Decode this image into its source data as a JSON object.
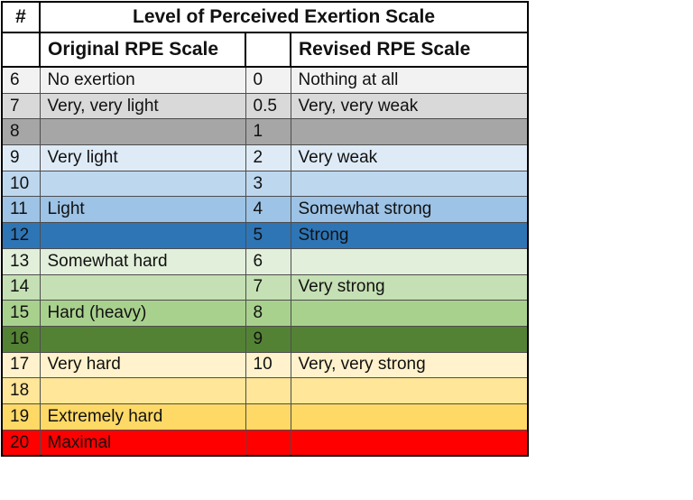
{
  "table": {
    "header": {
      "hash_label": "#",
      "title": "Level of Perceived Exertion Scale",
      "original_label": "Original RPE Scale",
      "revised_label": "Revised RPE Scale"
    },
    "rows": [
      {
        "num": "6",
        "original": "No exertion",
        "rnum": "0",
        "revised": "Nothing at all",
        "bg": "#F2F2F2"
      },
      {
        "num": "7",
        "original": "Very, very light",
        "rnum": "0.5",
        "revised": "Very, very weak",
        "bg": "#D9D9D9"
      },
      {
        "num": "8",
        "original": "",
        "rnum": "1",
        "revised": "",
        "bg": "#A6A6A6"
      },
      {
        "num": "9",
        "original": "Very light",
        "rnum": "2",
        "revised": "Very weak",
        "bg": "#DEEBF7"
      },
      {
        "num": "10",
        "original": "",
        "rnum": "3",
        "revised": "",
        "bg": "#BDD7EE"
      },
      {
        "num": "11",
        "original": "Light",
        "rnum": "4",
        "revised": "Somewhat strong",
        "bg": "#9DC3E6"
      },
      {
        "num": "12",
        "original": "",
        "rnum": "5",
        "revised": "Strong",
        "bg": "#2E75B6"
      },
      {
        "num": "13",
        "original": "Somewhat hard",
        "rnum": "6",
        "revised": "",
        "bg": "#E2EFDA"
      },
      {
        "num": "14",
        "original": "",
        "rnum": "7",
        "revised": "Very strong",
        "bg": "#C5E0B4"
      },
      {
        "num": "15",
        "original": "Hard (heavy)",
        "rnum": "8",
        "revised": "",
        "bg": "#A9D18E"
      },
      {
        "num": "16",
        "original": "",
        "rnum": "9",
        "revised": "",
        "bg": "#548235"
      },
      {
        "num": "17",
        "original": "Very hard",
        "rnum": "10",
        "revised": "Very, very strong",
        "bg": "#FFF2CC"
      },
      {
        "num": "18",
        "original": "",
        "rnum": "",
        "revised": "",
        "bg": "#FFE699"
      },
      {
        "num": "19",
        "original": "Extremely hard",
        "rnum": "",
        "revised": "",
        "bg": "#FFD966"
      },
      {
        "num": "20",
        "original": "Maximal",
        "rnum": "",
        "revised": "",
        "bg": "#FF0000"
      }
    ],
    "colors": {
      "border_inner": "#4d4d4d",
      "border_outer": "#000000",
      "header_bg": "#ffffff",
      "text": "#111111"
    }
  },
  "chart_data": {
    "type": "table",
    "title": "Level of Perceived Exertion Scale",
    "columns": [
      "#",
      "Original RPE Scale",
      "",
      "Revised RPE Scale"
    ],
    "rows": [
      [
        "6",
        "No exertion",
        "0",
        "Nothing at all"
      ],
      [
        "7",
        "Very, very light",
        "0.5",
        "Very, very weak"
      ],
      [
        "8",
        "",
        "1",
        ""
      ],
      [
        "9",
        "Very light",
        "2",
        "Very weak"
      ],
      [
        "10",
        "",
        "3",
        ""
      ],
      [
        "11",
        "Light",
        "4",
        "Somewhat strong"
      ],
      [
        "12",
        "",
        "5",
        "Strong"
      ],
      [
        "13",
        "Somewhat hard",
        "6",
        ""
      ],
      [
        "14",
        "",
        "7",
        "Very strong"
      ],
      [
        "15",
        "Hard (heavy)",
        "8",
        ""
      ],
      [
        "16",
        "",
        "9",
        ""
      ],
      [
        "17",
        "Very hard",
        "10",
        "Very, very strong"
      ],
      [
        "18",
        "",
        "",
        ""
      ],
      [
        "19",
        "Extremely hard",
        "",
        ""
      ],
      [
        "20",
        "Maximal",
        "",
        ""
      ]
    ],
    "row_colors": [
      "#F2F2F2",
      "#D9D9D9",
      "#A6A6A6",
      "#DEEBF7",
      "#BDD7EE",
      "#9DC3E6",
      "#2E75B6",
      "#E2EFDA",
      "#C5E0B4",
      "#A9D18E",
      "#548235",
      "#FFF2CC",
      "#FFE699",
      "#FFD966",
      "#FF0000"
    ],
    "layout_hints": {
      "original_scale_range": "6-20",
      "revised_scale_range": "0-10",
      "grid": true,
      "text_color": "black on all rows"
    }
  }
}
